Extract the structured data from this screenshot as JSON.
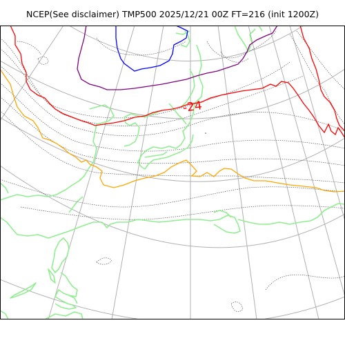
{
  "title": "NCEP(See disclaimer) TMP500 2025/12/21 00Z FT=216 (init 1200Z)",
  "map": {
    "field": "TMP500",
    "model": "NCEP",
    "valid_time": "2025/12/21 00Z",
    "forecast_hour": "FT=216",
    "init_time": "1200Z",
    "contour_labels": [
      {
        "text": "-24",
        "color": "#ff0000"
      }
    ],
    "colors": {
      "coastline": "#90ee90",
      "graticule": "#b0b0b0",
      "minor_isotherm": "#555555",
      "isotherm_red": "#ff0000",
      "isotherm_orange": "#ffa500",
      "isotherm_purple": "#800080",
      "isotherm_blue": "#0000ff"
    }
  }
}
